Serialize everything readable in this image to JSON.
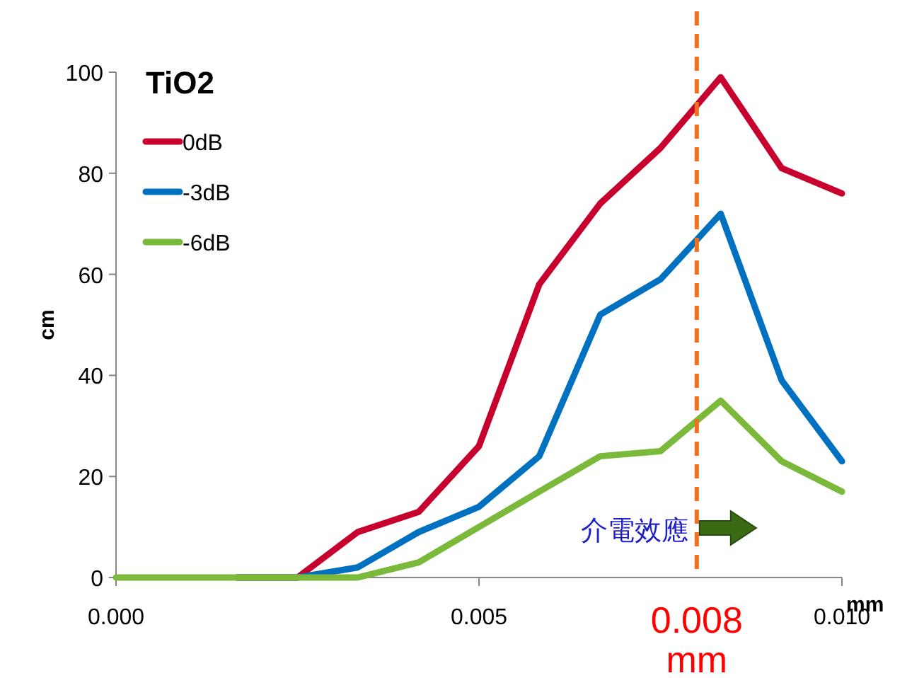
{
  "chart_data": {
    "type": "line",
    "legend_title": "TiO2",
    "xlabel": "mm",
    "ylabel": "cm",
    "x": [
      0,
      0.00083,
      0.00167,
      0.0025,
      0.00333,
      0.00417,
      0.005,
      0.00583,
      0.00667,
      0.0075,
      0.00833,
      0.00917,
      0.01
    ],
    "series": [
      {
        "name": "0dB",
        "color": "#c8002d",
        "values": [
          null,
          null,
          0,
          0,
          9,
          13,
          26,
          58,
          74,
          85,
          99,
          81,
          76
        ]
      },
      {
        "name": "-3dB",
        "color": "#0070c0",
        "values": [
          null,
          null,
          0,
          0,
          2,
          9,
          14,
          24,
          52,
          59,
          72,
          39,
          23
        ]
      },
      {
        "name": "-6dB",
        "color": "#7ab93a",
        "values": [
          0,
          0,
          0,
          0,
          0,
          3,
          10,
          17,
          24,
          25,
          35,
          23,
          17
        ]
      }
    ],
    "xlim": [
      0,
      0.01
    ],
    "ylim": [
      0,
      100
    ],
    "xticks": [
      {
        "value": 0,
        "label": "0.000"
      },
      {
        "value": 0.005,
        "label": "0.005"
      },
      {
        "value": 0.01,
        "label": "0.010"
      }
    ],
    "yticks": [
      0,
      20,
      40,
      60,
      80,
      100
    ],
    "ref_lines": [
      {
        "axis": "x",
        "value": 0.008,
        "label": "0.008 mm",
        "color": "#f07020",
        "line_style": "dashed"
      }
    ],
    "annotations": [
      "介電效應"
    ],
    "legend": "top left",
    "marker": "none",
    "line_style": "solid"
  }
}
